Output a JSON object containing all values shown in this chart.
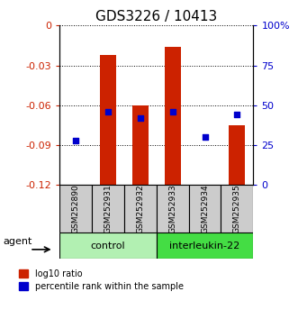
{
  "title": "GDS3226 / 10413",
  "samples": [
    "GSM252890",
    "GSM252931",
    "GSM252932",
    "GSM252933",
    "GSM252934",
    "GSM252935"
  ],
  "log10_bar_top": [
    -0.121,
    -0.022,
    -0.06,
    -0.016,
    -0.121,
    -0.075
  ],
  "percentile_rank": [
    28,
    46,
    42,
    46,
    30,
    44
  ],
  "group_colors": {
    "control": "#b2f0b2",
    "interleukin-22": "#44dd44"
  },
  "ylim_left": [
    -0.12,
    0
  ],
  "ylim_right": [
    0,
    100
  ],
  "yticks_left": [
    -0.12,
    -0.09,
    -0.06,
    -0.03,
    0
  ],
  "yticks_right": [
    0,
    25,
    50,
    75,
    100
  ],
  "right_tick_labels": [
    "0",
    "25",
    "50",
    "75",
    "100%"
  ],
  "bar_color": "#CC2200",
  "dot_color": "#0000CC",
  "background_color": "#ffffff",
  "title_fontsize": 11,
  "axis_label_color_left": "#CC2200",
  "axis_label_color_right": "#0000CC",
  "label_box_color": "#CCCCCC"
}
